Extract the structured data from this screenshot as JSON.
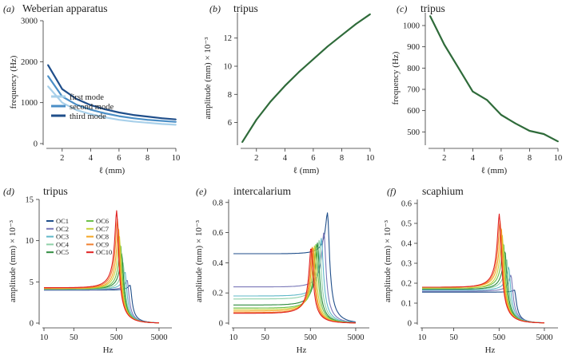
{
  "figure": {
    "panels": [
      "(a)",
      "(b)",
      "(c)",
      "(d)",
      "(e)",
      "(f)"
    ]
  },
  "chart_data": [
    {
      "id": "a",
      "panel_label": "(a)",
      "type": "line",
      "title": "Weberian apparatus",
      "xlabel": "ℓ (mm)",
      "ylabel": "frequency (Hz)",
      "xlim": [
        1,
        10
      ],
      "ylim": [
        0,
        3000
      ],
      "xscale": "linear",
      "xticks": [
        2,
        4,
        6,
        8,
        10
      ],
      "yticks": [
        0,
        1000,
        2000,
        3000
      ],
      "legend": "bottom-left",
      "series": [
        {
          "name": "first mode",
          "color": "#a8d0ea",
          "x": [
            1,
            2,
            3,
            4,
            5,
            6,
            7,
            8,
            9,
            10
          ],
          "y": [
            1400,
            1000,
            820,
            720,
            640,
            580,
            540,
            510,
            480,
            460
          ]
        },
        {
          "name": "second mode",
          "color": "#4a8ec6",
          "x": [
            1,
            2,
            3,
            4,
            5,
            6,
            7,
            8,
            9,
            10
          ],
          "y": [
            1650,
            1150,
            950,
            830,
            740,
            670,
            620,
            580,
            555,
            530
          ]
        },
        {
          "name": "third mode",
          "color": "#1f4e8a",
          "x": [
            1,
            2,
            3,
            4,
            5,
            6,
            7,
            8,
            9,
            10
          ],
          "y": [
            1920,
            1330,
            1090,
            940,
            840,
            760,
            700,
            660,
            620,
            590
          ]
        }
      ]
    },
    {
      "id": "b",
      "panel_label": "(b)",
      "type": "line",
      "title": "tripus",
      "xlabel": "ℓ (mm)",
      "ylabel": "amplitude (mm) × 10⁻³",
      "xlim": [
        1,
        10
      ],
      "ylim": [
        4.5,
        13.8
      ],
      "xscale": "linear",
      "xticks": [
        2,
        4,
        6,
        8,
        10
      ],
      "yticks": [
        6,
        8,
        10,
        12
      ],
      "series": [
        {
          "name": "tripus",
          "color": "#2f6b3a",
          "x": [
            1,
            2,
            3,
            4,
            5,
            6,
            7,
            8,
            9,
            10
          ],
          "y": [
            4.6,
            6.2,
            7.5,
            8.6,
            9.6,
            10.5,
            11.4,
            12.2,
            13.0,
            13.7
          ]
        }
      ]
    },
    {
      "id": "c",
      "panel_label": "(c)",
      "type": "line",
      "title": "tripus",
      "xlabel": "ℓ (mm)",
      "ylabel": "frequency (Hz)",
      "xlim": [
        1,
        10
      ],
      "ylim": [
        445,
        1060
      ],
      "xscale": "linear",
      "xticks": [
        2,
        4,
        6,
        8,
        10
      ],
      "yticks": [
        500,
        600,
        700,
        800,
        900,
        1000
      ],
      "series": [
        {
          "name": "tripus",
          "color": "#2f6b3a",
          "x": [
            1,
            2,
            3,
            4,
            5,
            6,
            7,
            8,
            9,
            10
          ],
          "y": [
            1045,
            910,
            800,
            690,
            650,
            580,
            540,
            505,
            490,
            455
          ]
        }
      ]
    },
    {
      "id": "d",
      "panel_label": "(d)",
      "type": "line",
      "title": "tripus",
      "xlabel": "Hz",
      "ylabel": "amplitude (mm) × 10⁻³",
      "xlim": [
        10,
        10000
      ],
      "ylim": [
        0,
        15
      ],
      "xscale": "log",
      "xticks": [
        10,
        50,
        500,
        5000
      ],
      "yticks": [
        0,
        5,
        10,
        15
      ],
      "legend": "top-left",
      "series": [
        {
          "name": "OC1",
          "color": "#1f4e8a",
          "f0": 1050,
          "peak": 4.6,
          "base": 4.0
        },
        {
          "name": "OC2",
          "color": "#7a78b8",
          "f0": 900,
          "peak": 5.2,
          "base": 4.05
        },
        {
          "name": "OC3",
          "color": "#5fb8c8",
          "f0": 800,
          "peak": 6.2,
          "base": 4.1
        },
        {
          "name": "OC4",
          "color": "#8fd0a8",
          "f0": 720,
          "peak": 7.3,
          "base": 4.1
        },
        {
          "name": "OC5",
          "color": "#2e8b3e",
          "f0": 670,
          "peak": 8.4,
          "base": 4.15
        },
        {
          "name": "OC6",
          "color": "#6cc04a",
          "f0": 630,
          "peak": 9.5,
          "base": 4.15
        },
        {
          "name": "OC7",
          "color": "#c8d23a",
          "f0": 590,
          "peak": 10.5,
          "base": 4.2
        },
        {
          "name": "OC8",
          "color": "#f5a623",
          "f0": 560,
          "peak": 11.6,
          "base": 4.2
        },
        {
          "name": "OC9",
          "color": "#f08030",
          "f0": 530,
          "peak": 12.6,
          "base": 4.25
        },
        {
          "name": "OC10",
          "color": "#e02020",
          "f0": 510,
          "peak": 13.6,
          "base": 4.3
        }
      ]
    },
    {
      "id": "e",
      "panel_label": "(e)",
      "type": "line",
      "title": "intercalarium",
      "xlabel": "Hz",
      "ylabel": "amplitude (mm) × 10⁻³",
      "xlim": [
        10,
        10000
      ],
      "ylim": [
        0,
        0.82
      ],
      "xscale": "log",
      "xticks": [
        10,
        50,
        500,
        5000
      ],
      "yticks": [
        0,
        0.2,
        0.4,
        0.6,
        0.8
      ],
      "series": [
        {
          "name": "OC1",
          "color": "#1f4e8a",
          "f0": 1200,
          "peak": 0.73,
          "base": 0.46
        },
        {
          "name": "OC2",
          "color": "#7a78b8",
          "f0": 1000,
          "peak": 0.6,
          "base": 0.24
        },
        {
          "name": "OC3",
          "color": "#5fb8c8",
          "f0": 880,
          "peak": 0.56,
          "base": 0.18
        },
        {
          "name": "OC4",
          "color": "#8fd0a8",
          "f0": 790,
          "peak": 0.55,
          "base": 0.16
        },
        {
          "name": "OC5",
          "color": "#2e8b3e",
          "f0": 720,
          "peak": 0.53,
          "base": 0.12
        },
        {
          "name": "OC6",
          "color": "#6cc04a",
          "f0": 670,
          "peak": 0.52,
          "base": 0.1
        },
        {
          "name": "OC7",
          "color": "#c8d23a",
          "f0": 620,
          "peak": 0.51,
          "base": 0.09
        },
        {
          "name": "OC8",
          "color": "#f5a623",
          "f0": 580,
          "peak": 0.5,
          "base": 0.08
        },
        {
          "name": "OC9",
          "color": "#f08030",
          "f0": 550,
          "peak": 0.5,
          "base": 0.07
        },
        {
          "name": "OC10",
          "color": "#e02020",
          "f0": 520,
          "peak": 0.5,
          "base": 0.065
        }
      ]
    },
    {
      "id": "f",
      "panel_label": "(f)",
      "type": "line",
      "title": "scaphium",
      "xlabel": "Hz",
      "ylabel": "amplitude (mm) × 10⁻³",
      "xlim": [
        10,
        10000
      ],
      "ylim": [
        0,
        0.62
      ],
      "xscale": "log",
      "xticks": [
        10,
        50,
        500,
        5000
      ],
      "yticks": [
        0,
        0.1,
        0.2,
        0.3,
        0.4,
        0.5,
        0.6
      ],
      "series": [
        {
          "name": "OC1",
          "color": "#1f4e8a",
          "f0": 1100,
          "peak": 0.165,
          "base": 0.155
        },
        {
          "name": "OC2",
          "color": "#7a78b8",
          "f0": 920,
          "peak": 0.24,
          "base": 0.16
        },
        {
          "name": "OC3",
          "color": "#5fb8c8",
          "f0": 820,
          "peak": 0.28,
          "base": 0.165
        },
        {
          "name": "OC4",
          "color": "#8fd0a8",
          "f0": 740,
          "peak": 0.32,
          "base": 0.17
        },
        {
          "name": "OC5",
          "color": "#2e8b3e",
          "f0": 680,
          "peak": 0.36,
          "base": 0.17
        },
        {
          "name": "OC6",
          "color": "#6cc04a",
          "f0": 630,
          "peak": 0.4,
          "base": 0.175
        },
        {
          "name": "OC7",
          "color": "#c8d23a",
          "f0": 590,
          "peak": 0.44,
          "base": 0.175
        },
        {
          "name": "OC8",
          "color": "#f5a623",
          "f0": 560,
          "peak": 0.48,
          "base": 0.18
        },
        {
          "name": "OC9",
          "color": "#f08030",
          "f0": 530,
          "peak": 0.51,
          "base": 0.18
        },
        {
          "name": "OC10",
          "color": "#e02020",
          "f0": 510,
          "peak": 0.545,
          "base": 0.18
        }
      ]
    }
  ]
}
